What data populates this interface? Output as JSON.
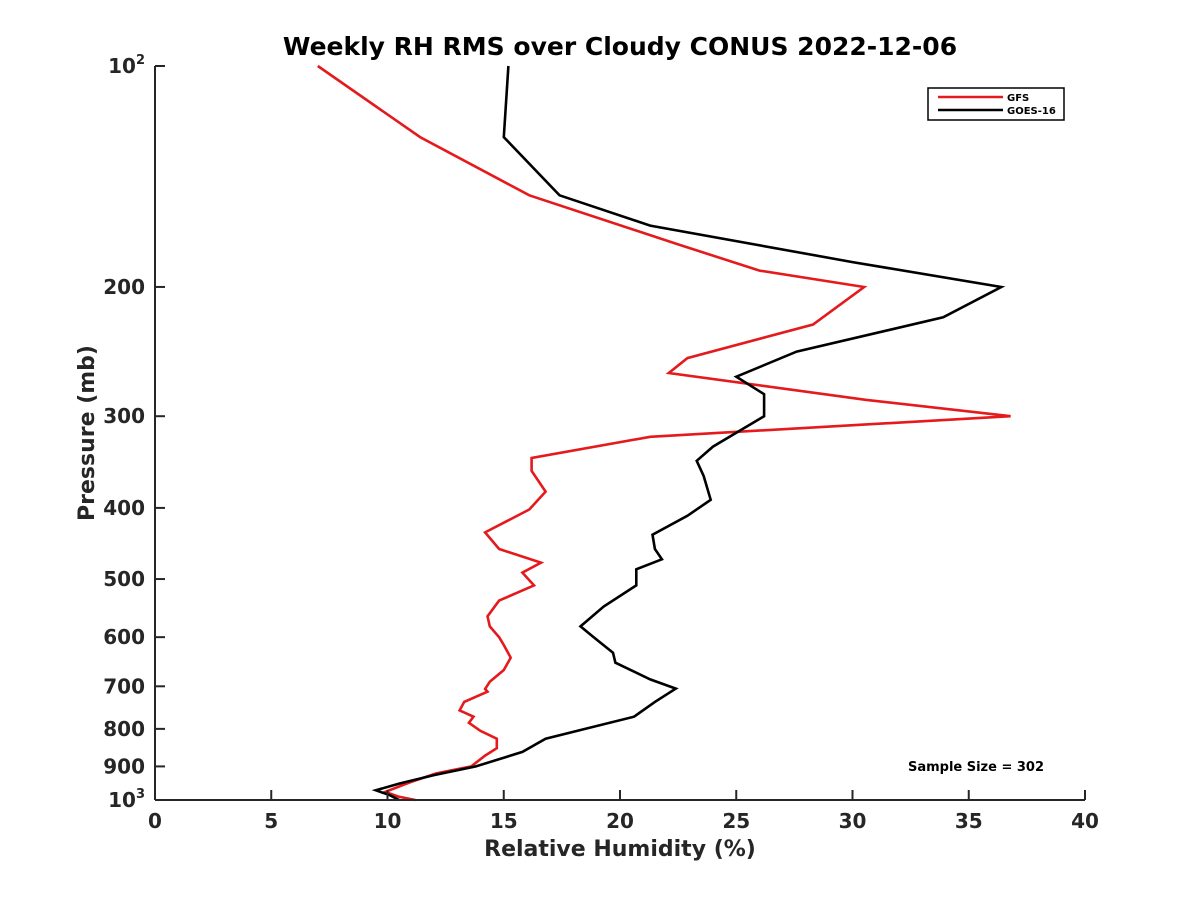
{
  "chart_data": {
    "type": "line",
    "title": "Weekly RH RMS over Cloudy CONUS 2022-12-06",
    "xlabel": "Relative Humidity (%)",
    "ylabel": "Pressure (mb)",
    "xlim": [
      0,
      40
    ],
    "ylim": [
      100,
      1000
    ],
    "y_scale": "log",
    "y_reversed": true,
    "x_ticks": [
      0,
      5,
      10,
      15,
      20,
      25,
      30,
      35,
      40
    ],
    "y_ticks": [
      {
        "value": 100,
        "label": "10",
        "exponent": "2"
      },
      {
        "value": 200,
        "label": "200"
      },
      {
        "value": 300,
        "label": "300"
      },
      {
        "value": 400,
        "label": "400"
      },
      {
        "value": 500,
        "label": "500"
      },
      {
        "value": 600,
        "label": "600"
      },
      {
        "value": 700,
        "label": "700"
      },
      {
        "value": 800,
        "label": "800"
      },
      {
        "value": 900,
        "label": "900"
      },
      {
        "value": 1000,
        "label": "10",
        "exponent": "3"
      }
    ],
    "legend_position": "top-right",
    "annotation": "Sample Size = 302",
    "series": [
      {
        "name": "GFS",
        "color": "#e41a1c",
        "points": [
          [
            7.0,
            100
          ],
          [
            11.4,
            125
          ],
          [
            16.1,
            150
          ],
          [
            22.5,
            175
          ],
          [
            26.0,
            190
          ],
          [
            30.5,
            200
          ],
          [
            28.3,
            225
          ],
          [
            22.9,
            250
          ],
          [
            22.1,
            262
          ],
          [
            30.6,
            285
          ],
          [
            36.8,
            300
          ],
          [
            21.3,
            320
          ],
          [
            16.2,
            342
          ],
          [
            16.2,
            356
          ],
          [
            16.8,
            380
          ],
          [
            16.1,
            402
          ],
          [
            14.2,
            432
          ],
          [
            14.8,
            455
          ],
          [
            16.6,
            475
          ],
          [
            15.8,
            490
          ],
          [
            16.3,
            510
          ],
          [
            14.8,
            535
          ],
          [
            14.3,
            562
          ],
          [
            14.4,
            580
          ],
          [
            14.8,
            600
          ],
          [
            15.0,
            615
          ],
          [
            15.3,
            640
          ],
          [
            15.0,
            665
          ],
          [
            14.4,
            690
          ],
          [
            14.2,
            706
          ],
          [
            14.3,
            712
          ],
          [
            13.3,
            735
          ],
          [
            13.1,
            755
          ],
          [
            13.7,
            770
          ],
          [
            13.5,
            785
          ],
          [
            14.0,
            805
          ],
          [
            14.7,
            825
          ],
          [
            14.7,
            850
          ],
          [
            14.2,
            870
          ],
          [
            13.6,
            900
          ],
          [
            12.1,
            920
          ],
          [
            11.0,
            945
          ],
          [
            9.9,
            975
          ],
          [
            10.5,
            990
          ],
          [
            11.2,
            1000
          ]
        ]
      },
      {
        "name": "GOES-16",
        "color": "#000000",
        "points": [
          [
            15.2,
            100
          ],
          [
            15.0,
            125
          ],
          [
            17.4,
            150
          ],
          [
            21.3,
            165
          ],
          [
            30.0,
            185
          ],
          [
            36.4,
            200
          ],
          [
            33.9,
            220
          ],
          [
            27.6,
            245
          ],
          [
            25.0,
            265
          ],
          [
            26.2,
            280
          ],
          [
            26.2,
            300
          ],
          [
            24.0,
            330
          ],
          [
            23.3,
            345
          ],
          [
            23.6,
            362
          ],
          [
            23.9,
            390
          ],
          [
            22.9,
            410
          ],
          [
            21.4,
            435
          ],
          [
            21.5,
            455
          ],
          [
            21.8,
            470
          ],
          [
            20.7,
            485
          ],
          [
            20.7,
            510
          ],
          [
            19.3,
            545
          ],
          [
            18.3,
            580
          ],
          [
            19.0,
            605
          ],
          [
            19.7,
            630
          ],
          [
            19.8,
            650
          ],
          [
            21.3,
            685
          ],
          [
            22.4,
            705
          ],
          [
            21.5,
            735
          ],
          [
            20.6,
            770
          ],
          [
            18.5,
            800
          ],
          [
            16.8,
            825
          ],
          [
            15.8,
            860
          ],
          [
            13.8,
            900
          ],
          [
            12.0,
            925
          ],
          [
            10.5,
            950
          ],
          [
            9.5,
            970
          ],
          [
            10.1,
            985
          ],
          [
            10.5,
            1000
          ]
        ]
      }
    ]
  }
}
